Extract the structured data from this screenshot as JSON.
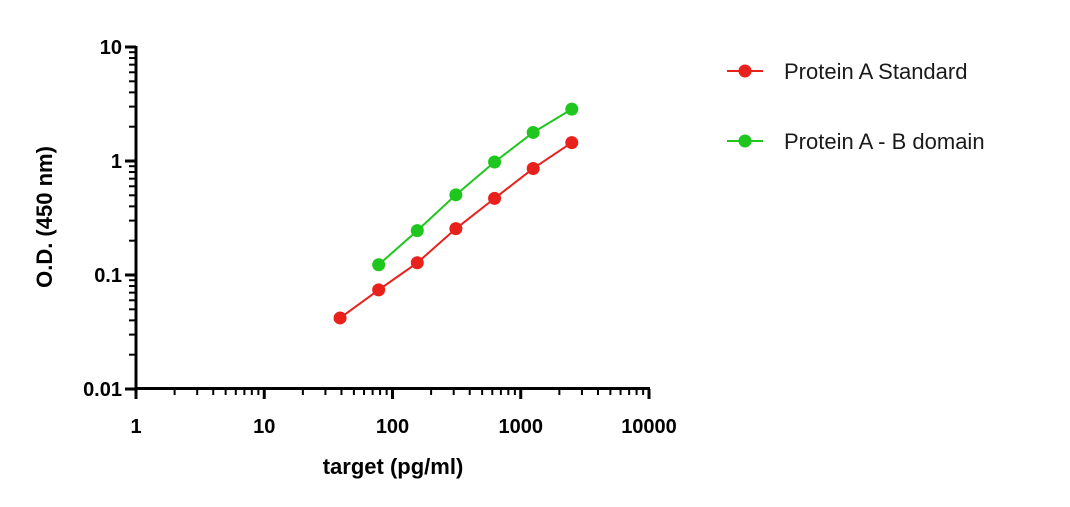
{
  "chart_data": {
    "type": "scatter",
    "title": "",
    "xlabel": "target (pg/ml)",
    "ylabel": "O.D. (450 nm)",
    "x_scale": "log",
    "y_scale": "log",
    "xlim": [
      1,
      10000
    ],
    "ylim": [
      0.01,
      10
    ],
    "x_ticks": [
      {
        "value": 1,
        "label": "1"
      },
      {
        "value": 10,
        "label": "10"
      },
      {
        "value": 100,
        "label": "100"
      },
      {
        "value": 1000,
        "label": "1000"
      },
      {
        "value": 10000,
        "label": "10000"
      }
    ],
    "y_ticks": [
      {
        "value": 0.01,
        "label": "0.01"
      },
      {
        "value": 0.1,
        "label": "0.1"
      },
      {
        "value": 1,
        "label": "1"
      },
      {
        "value": 10,
        "label": "10"
      }
    ],
    "grid": false,
    "legend_position": "right",
    "series": [
      {
        "name": "Protein A Standard",
        "color": "#e8211d",
        "x": [
          39,
          78,
          156,
          312,
          625,
          1250,
          2500
        ],
        "y": [
          0.042,
          0.074,
          0.128,
          0.255,
          0.47,
          0.86,
          1.45
        ]
      },
      {
        "name": "Protein A - B domain",
        "color": "#1ec61e",
        "x": [
          78,
          156,
          312,
          625,
          1250,
          2500
        ],
        "y": [
          0.123,
          0.245,
          0.505,
          0.98,
          1.78,
          2.85
        ]
      }
    ]
  }
}
